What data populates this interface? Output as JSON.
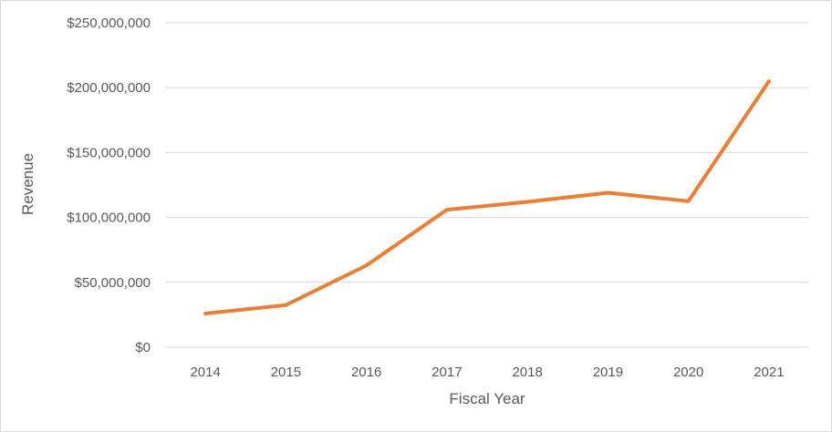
{
  "chart_data": {
    "type": "line",
    "xlabel": "Fiscal Year",
    "ylabel": "Revenue",
    "categories": [
      "2014",
      "2015",
      "2016",
      "2017",
      "2018",
      "2019",
      "2020",
      "2021"
    ],
    "series": [
      {
        "values": [
          26000000,
          32500000,
          63000000,
          106000000,
          112000000,
          119000000,
          112500000,
          205000000
        ],
        "color": "#ED7D31"
      }
    ],
    "ylim": [
      0,
      250000000
    ],
    "yticks": [
      0,
      50000000,
      100000000,
      150000000,
      200000000,
      250000000
    ],
    "ytick_labels": [
      "$0",
      "$50,000,000",
      "$100,000,000",
      "$150,000,000",
      "$200,000,000",
      "$250,000,000"
    ],
    "grid": true,
    "gridline_color": "#d9d9d9",
    "legend": "none"
  }
}
